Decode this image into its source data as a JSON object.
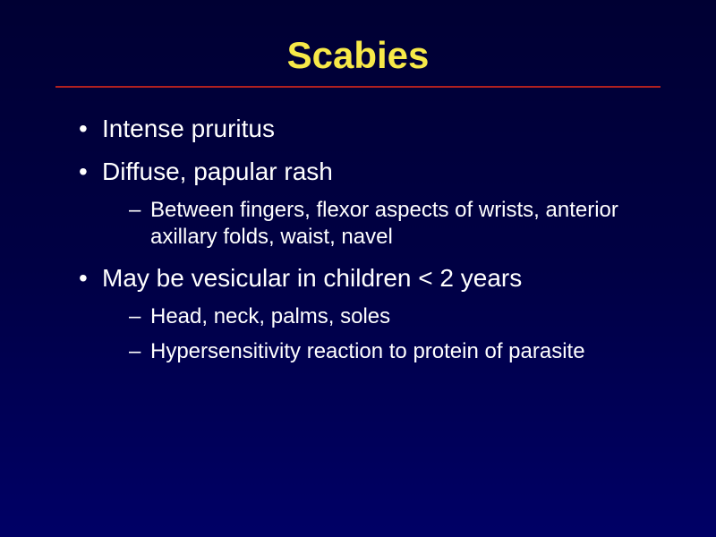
{
  "title": {
    "text": "Scabies",
    "color": "#f7e948",
    "fontsize": 42
  },
  "rule_color": "#b02020",
  "text_color": "#ffffff",
  "level1_fontsize": 28,
  "level2_fontsize": 24,
  "bullets": {
    "b1": "Intense pruritus",
    "b2": "Diffuse, papular rash",
    "b2_subs": {
      "s1": "Between fingers, flexor aspects of wrists, anterior axillary folds, waist, navel"
    },
    "b3": "May be vesicular in children  < 2 years",
    "b3_subs": {
      "s1": "Head, neck, palms, soles",
      "s2": "Hypersensitivity reaction to protein of parasite"
    }
  }
}
